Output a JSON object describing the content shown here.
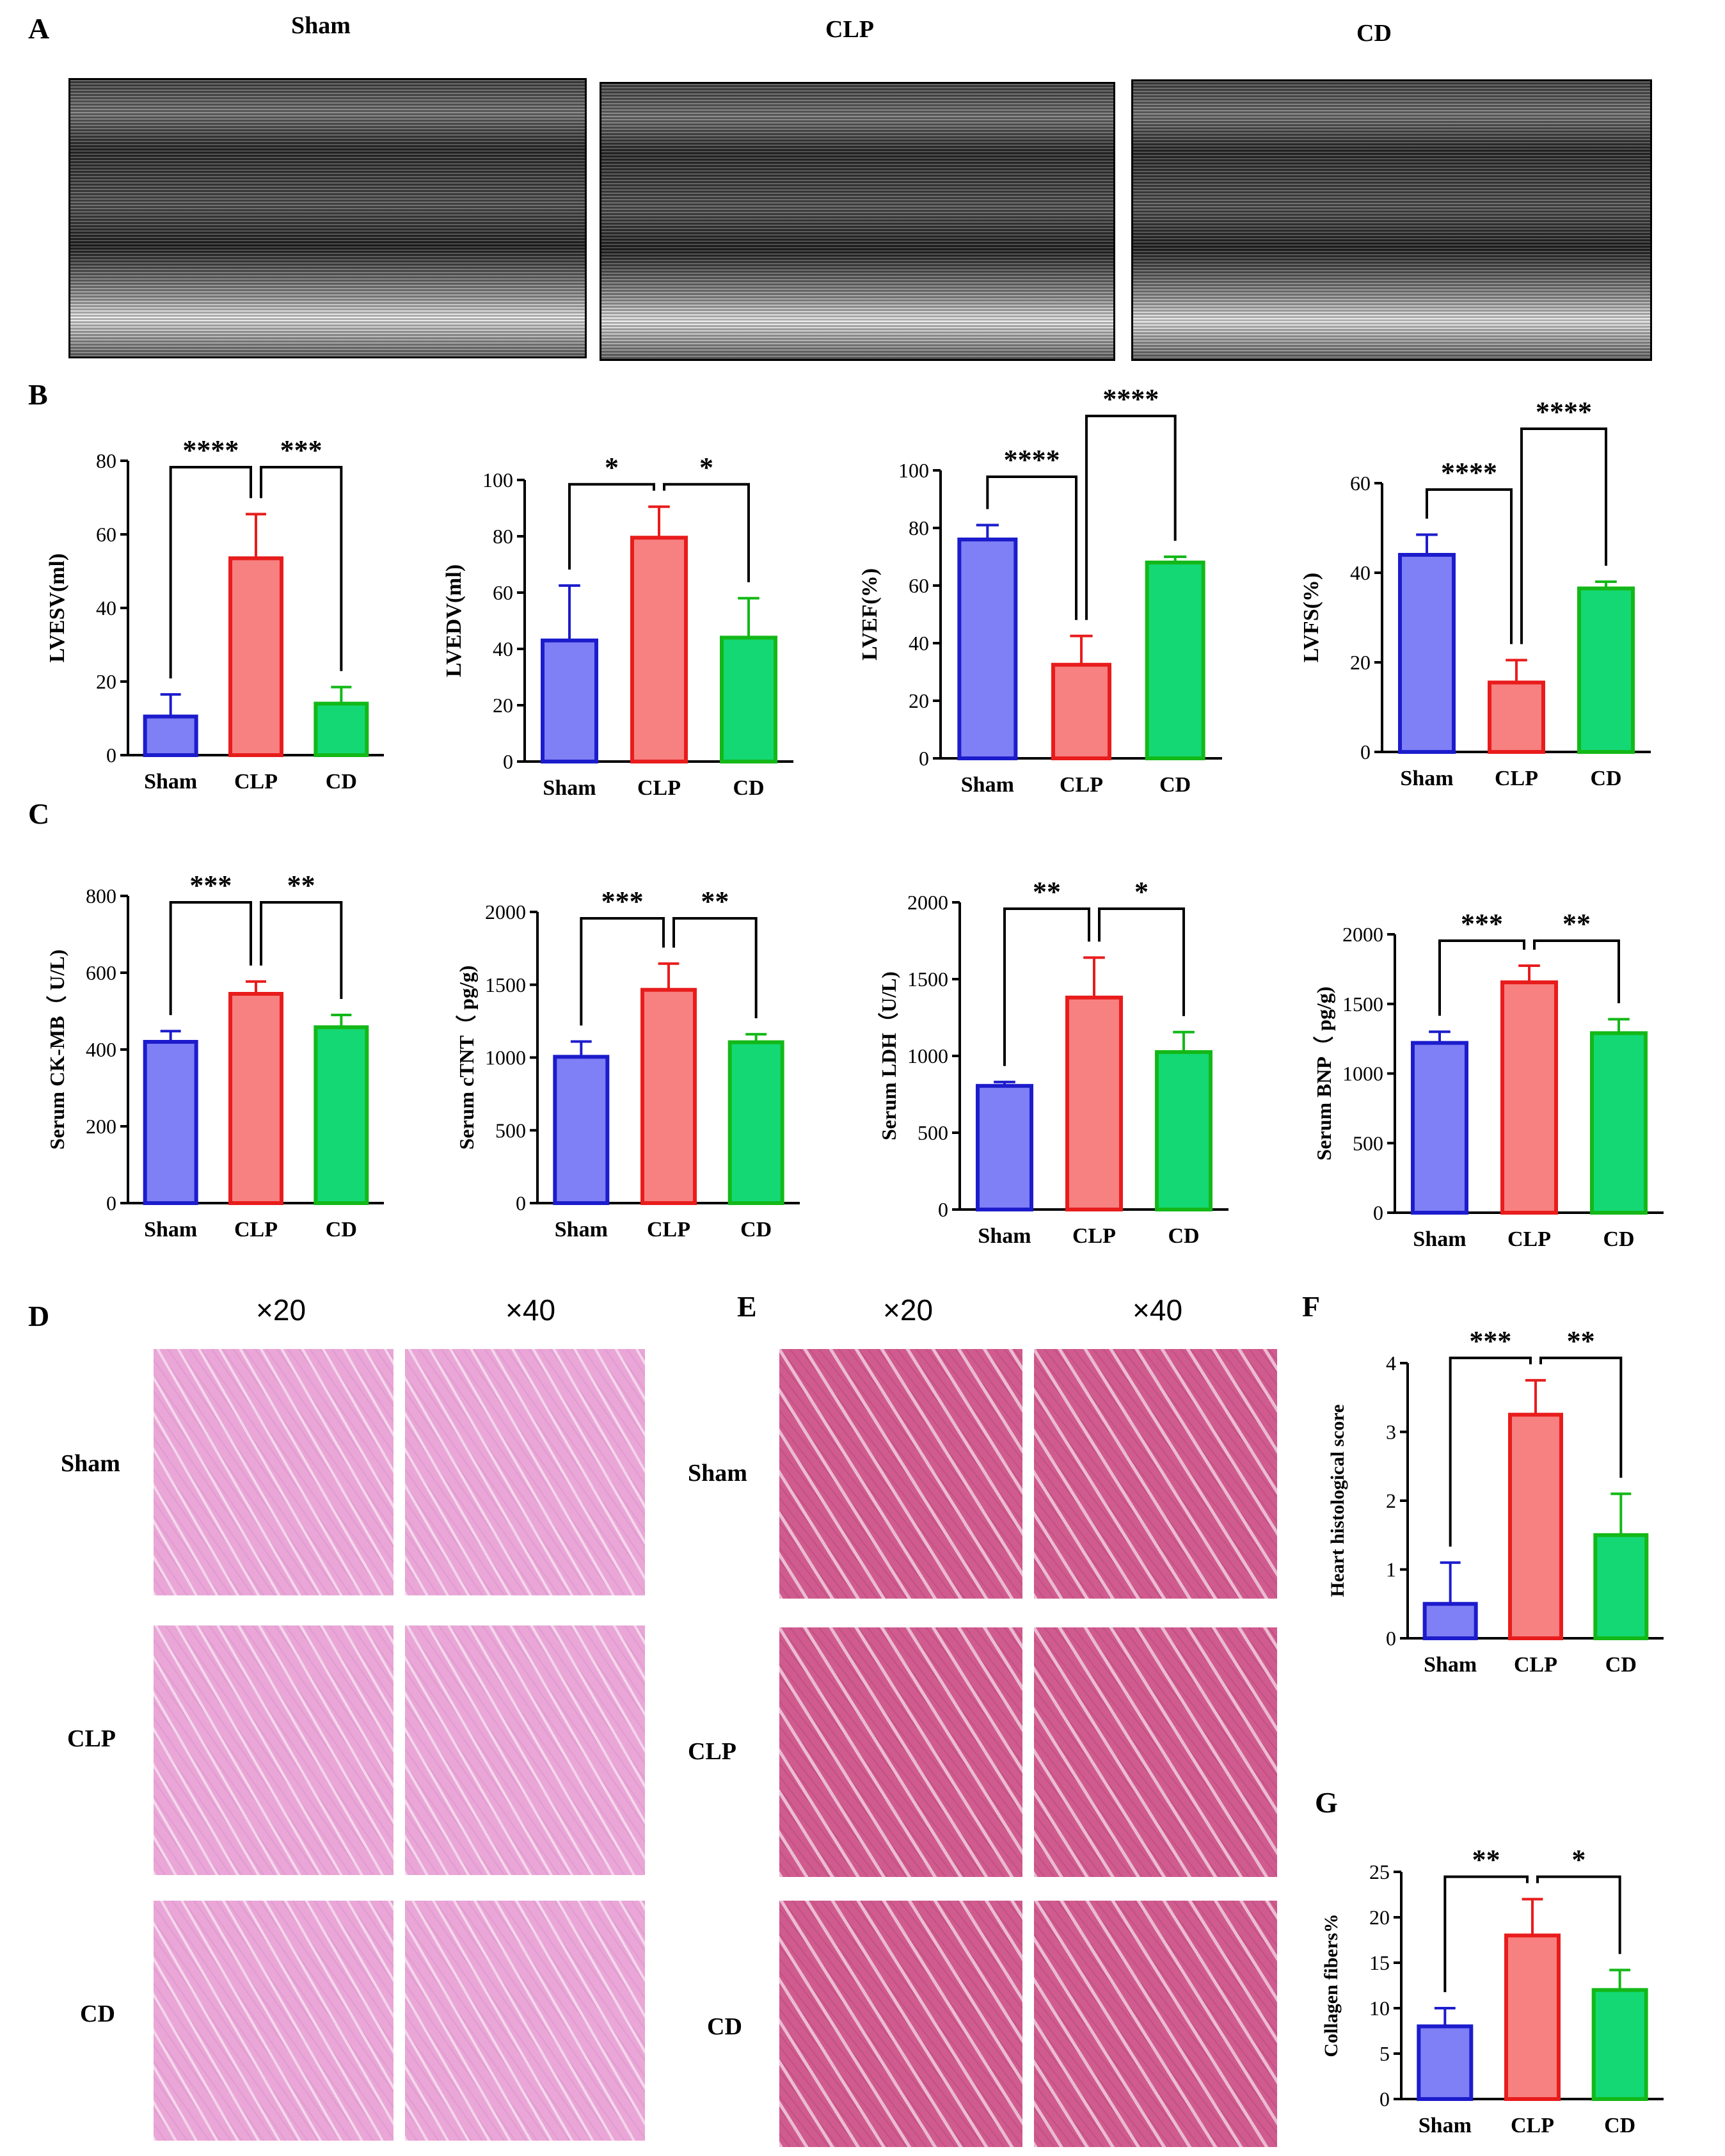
{
  "panel_letters": [
    "A",
    "B",
    "C",
    "D",
    "E",
    "F",
    "G"
  ],
  "echo": {
    "groups": [
      "Sham",
      "CLP",
      "CD"
    ]
  },
  "histology": {
    "D": {
      "magnifications": [
        "×20",
        "×40"
      ],
      "rows": [
        "Sham",
        "CLP",
        "CD"
      ]
    },
    "E": {
      "magnifications": [
        "×20",
        "×40"
      ],
      "rows": [
        "Sham",
        "CLP",
        "CD"
      ]
    }
  },
  "colors": {
    "sham_fill": "#7f7ff6",
    "sham_edge": "#1c1ccc",
    "clp_fill": "#f78080",
    "clp_edge": "#e81c1c",
    "cd_fill": "#14d874",
    "cd_edge": "#13b818"
  },
  "chart_data": [
    {
      "id": "lvesv",
      "type": "bar",
      "categories": [
        "Sham",
        "CLP",
        "CD"
      ],
      "values": [
        10.5,
        53.5,
        14
      ],
      "errors": [
        6,
        12,
        4.5
      ],
      "ylabel": "LVESV(ml)",
      "ylim": [
        0,
        80
      ],
      "ticks": [
        0,
        20,
        40,
        60,
        80
      ],
      "sig": [
        {
          "from": 0,
          "to": 1,
          "label": "****"
        },
        {
          "from": 1,
          "to": 2,
          "label": "***"
        }
      ]
    },
    {
      "id": "lvedv",
      "type": "bar",
      "categories": [
        "Sham",
        "CLP",
        "CD"
      ],
      "values": [
        43,
        79.5,
        44
      ],
      "errors": [
        19.5,
        11,
        14
      ],
      "ylabel": "LVEDV(ml)",
      "ylim": [
        0,
        100
      ],
      "ticks": [
        0,
        20,
        40,
        60,
        80,
        100
      ],
      "sig": [
        {
          "from": 0,
          "to": 1,
          "label": "*"
        },
        {
          "from": 1,
          "to": 2,
          "label": "*"
        }
      ]
    },
    {
      "id": "lvef",
      "type": "bar",
      "categories": [
        "Sham",
        "CLP",
        "CD"
      ],
      "values": [
        76,
        32.5,
        68
      ],
      "errors": [
        5,
        10,
        2
      ],
      "ylabel": "LVEF(%)",
      "ylim": [
        0,
        100
      ],
      "ticks": [
        0,
        20,
        40,
        60,
        80,
        100
      ],
      "sig": [
        {
          "from": 0,
          "to": 1,
          "label": "****"
        },
        {
          "from": 1,
          "to": 2,
          "label": "****",
          "level": 2
        }
      ]
    },
    {
      "id": "lvfs",
      "type": "bar",
      "categories": [
        "Sham",
        "CLP",
        "CD"
      ],
      "values": [
        44,
        15.5,
        36.5
      ],
      "errors": [
        4.5,
        5,
        1.5
      ],
      "ylabel": "LVFS(%)",
      "ylim": [
        0,
        60
      ],
      "ticks": [
        0,
        20,
        40,
        60
      ],
      "sig": [
        {
          "from": 0,
          "to": 1,
          "label": "****"
        },
        {
          "from": 1,
          "to": 2,
          "label": "****",
          "level": 2
        }
      ]
    },
    {
      "id": "ckmb",
      "type": "bar",
      "categories": [
        "Sham",
        "CLP",
        "CD"
      ],
      "values": [
        420,
        545,
        458
      ],
      "errors": [
        28,
        32,
        32
      ],
      "ylabel": "Serum CK-MB（ U/L)",
      "ylim": [
        0,
        800
      ],
      "ticks": [
        0,
        200,
        400,
        600,
        800
      ],
      "sig": [
        {
          "from": 0,
          "to": 1,
          "label": "***"
        },
        {
          "from": 1,
          "to": 2,
          "label": "**"
        }
      ]
    },
    {
      "id": "ctnt",
      "type": "bar",
      "categories": [
        "Sham",
        "CLP",
        "CD"
      ],
      "values": [
        1005,
        1465,
        1105
      ],
      "errors": [
        105,
        180,
        55
      ],
      "ylabel": "Serum cTNT（ pg/g)",
      "ylim": [
        0,
        2000
      ],
      "ticks": [
        0,
        500,
        1000,
        1500,
        2000
      ],
      "sig": [
        {
          "from": 0,
          "to": 1,
          "label": "***"
        },
        {
          "from": 1,
          "to": 2,
          "label": "**"
        }
      ]
    },
    {
      "id": "ldh",
      "type": "bar",
      "categories": [
        "Sham",
        "CLP",
        "CD"
      ],
      "values": [
        805,
        1380,
        1025
      ],
      "errors": [
        25,
        260,
        130
      ],
      "ylabel": "Serum LDH（U/L)",
      "ylim": [
        0,
        2000
      ],
      "ticks": [
        0,
        500,
        1000,
        1500,
        2000
      ],
      "sig": [
        {
          "from": 0,
          "to": 1,
          "label": "**"
        },
        {
          "from": 1,
          "to": 2,
          "label": "*"
        }
      ]
    },
    {
      "id": "bnp",
      "type": "bar",
      "categories": [
        "Sham",
        "CLP",
        "CD"
      ],
      "values": [
        1220,
        1655,
        1290
      ],
      "errors": [
        80,
        120,
        100
      ],
      "ylabel": "Serum BNP（ pg/g)",
      "ylim": [
        0,
        2000
      ],
      "ticks": [
        0,
        500,
        1000,
        1500,
        2000
      ],
      "sig": [
        {
          "from": 0,
          "to": 1,
          "label": "***"
        },
        {
          "from": 1,
          "to": 2,
          "label": "**"
        }
      ]
    },
    {
      "id": "histo",
      "type": "bar",
      "categories": [
        "Sham",
        "CLP",
        "CD"
      ],
      "values": [
        0.5,
        3.25,
        1.5
      ],
      "errors": [
        0.6,
        0.5,
        0.6
      ],
      "ylabel": "Heart histological score",
      "ylim": [
        0,
        4
      ],
      "ticks": [
        0,
        1,
        2,
        3,
        4
      ],
      "sig": [
        {
          "from": 0,
          "to": 1,
          "label": "***"
        },
        {
          "from": 1,
          "to": 2,
          "label": "**"
        }
      ]
    },
    {
      "id": "collagen",
      "type": "bar",
      "categories": [
        "Sham",
        "CLP",
        "CD"
      ],
      "values": [
        8,
        18,
        12
      ],
      "errors": [
        2,
        4,
        2.2
      ],
      "ylabel": "Collagen fibers%",
      "ylim": [
        0,
        25
      ],
      "ticks": [
        0,
        5,
        10,
        15,
        20,
        25
      ],
      "sig": [
        {
          "from": 0,
          "to": 1,
          "label": "**"
        },
        {
          "from": 1,
          "to": 2,
          "label": "*"
        }
      ]
    }
  ]
}
